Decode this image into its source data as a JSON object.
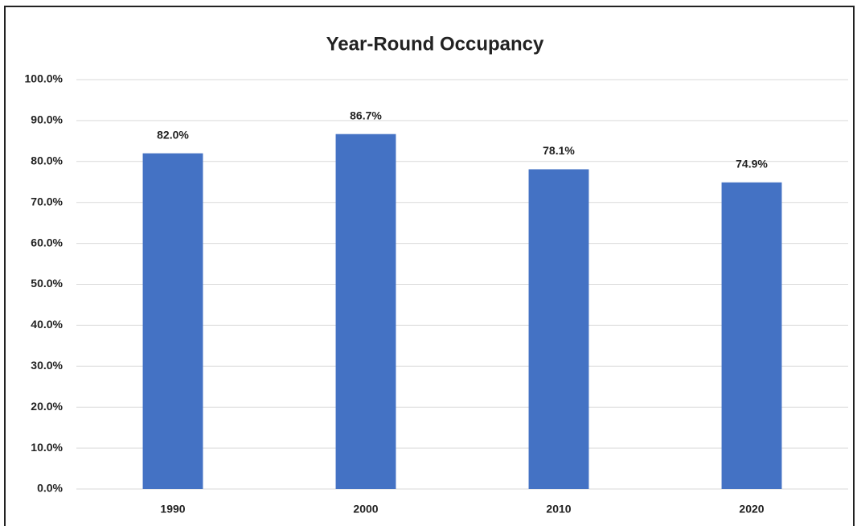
{
  "chart_data": {
    "type": "bar",
    "title": "Year-Round Occupancy",
    "categories": [
      "1990",
      "2000",
      "2010",
      "2020"
    ],
    "values": [
      82.0,
      86.7,
      78.1,
      74.9
    ],
    "value_labels": [
      "82.0%",
      "86.7%",
      "78.1%",
      "74.9%"
    ],
    "color": "#4472c4",
    "ylim": [
      0,
      100
    ],
    "yticks": [
      {
        "value": 0,
        "label": "0.0%"
      },
      {
        "value": 10,
        "label": "10.0%"
      },
      {
        "value": 20,
        "label": "20.0%"
      },
      {
        "value": 30,
        "label": "30.0%"
      },
      {
        "value": 40,
        "label": "40.0%"
      },
      {
        "value": 50,
        "label": "50.0%"
      },
      {
        "value": 60,
        "label": "60.0%"
      },
      {
        "value": 70,
        "label": "70.0%"
      },
      {
        "value": 80,
        "label": "80.0%"
      },
      {
        "value": 90,
        "label": "90.0%"
      },
      {
        "value": 100,
        "label": "100.0%"
      }
    ],
    "grid": true
  }
}
